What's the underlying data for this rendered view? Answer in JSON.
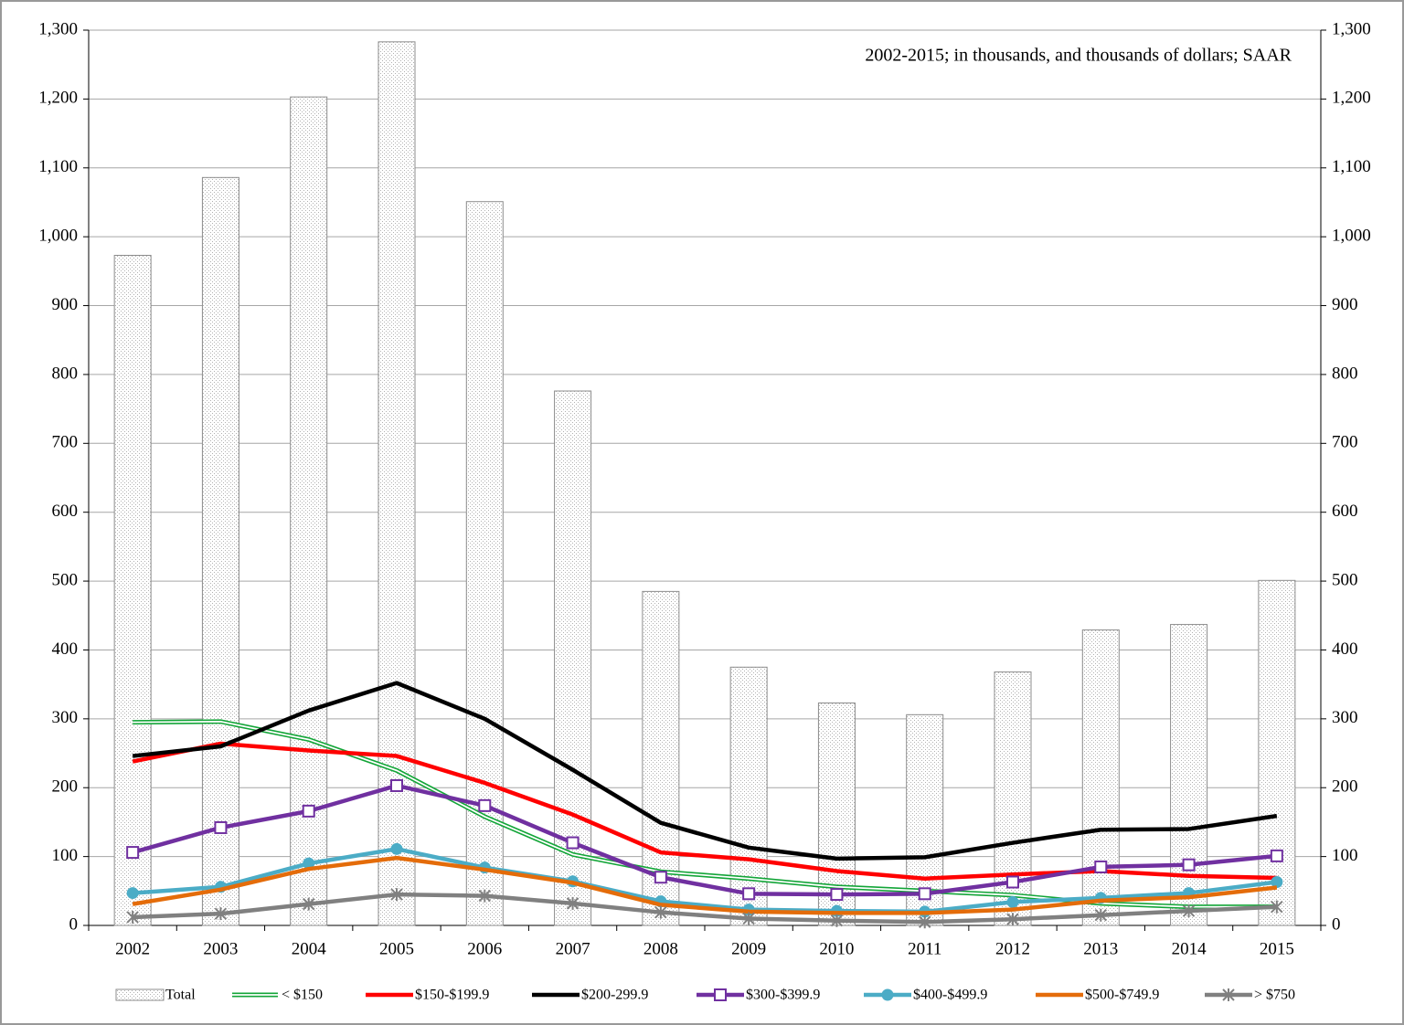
{
  "chart_data": {
    "type": "combo",
    "annotation": "2002-2015; in thousands, and thousands of dollars; SAAR",
    "categories": [
      "2002",
      "2003",
      "2004",
      "2005",
      "2006",
      "2007",
      "2008",
      "2009",
      "2010",
      "2011",
      "2012",
      "2013",
      "2014",
      "2015"
    ],
    "ylim": [
      0,
      1300
    ],
    "yticks": [
      0,
      100,
      200,
      300,
      400,
      500,
      600,
      700,
      800,
      900,
      {
        "value": 1000,
        "label": "1,000"
      },
      {
        "value": 1100,
        "label": "1,100"
      },
      {
        "value": 1200,
        "label": "1,200"
      },
      {
        "value": 1300,
        "label": "1,300"
      }
    ],
    "y2lim": [
      0,
      1300
    ],
    "y2ticks": [
      0,
      100,
      200,
      300,
      400,
      500,
      600,
      700,
      800,
      900,
      {
        "value": 1000,
        "label": "1,000"
      },
      {
        "value": 1100,
        "label": "1,100"
      },
      {
        "value": 1200,
        "label": "1,200"
      },
      {
        "value": 1300,
        "label": "1,300"
      }
    ],
    "grid": true,
    "legend": "bottom",
    "series": [
      {
        "name": "Total",
        "type": "bar",
        "color": "#b0b0b0",
        "values": [
          973,
          1086,
          1203,
          1283,
          1051,
          776,
          485,
          375,
          323,
          306,
          368,
          429,
          437,
          501
        ]
      },
      {
        "name": "< $150",
        "type": "line",
        "color": "#13a538",
        "marker": "double",
        "values": [
          295,
          296,
          270,
          225,
          158,
          103,
          78,
          68,
          56,
          50,
          44,
          32,
          27,
          27
        ]
      },
      {
        "name": "$150-$199.9",
        "type": "line",
        "color": "#ff0000",
        "marker": "none",
        "values": [
          238,
          264,
          254,
          246,
          207,
          161,
          106,
          96,
          79,
          68,
          74,
          79,
          72,
          69
        ]
      },
      {
        "name": "$200-299.9",
        "type": "line",
        "color": "#000000",
        "marker": "none",
        "values": [
          246,
          260,
          312,
          352,
          300,
          226,
          149,
          113,
          97,
          99,
          120,
          139,
          140,
          159
        ]
      },
      {
        "name": "$300-$399.9",
        "type": "line",
        "color": "#7030a0",
        "marker": "square",
        "values": [
          106,
          142,
          166,
          203,
          174,
          120,
          70,
          46,
          45,
          46,
          63,
          85,
          88,
          101
        ]
      },
      {
        "name": "$400-$499.9",
        "type": "line",
        "color": "#4bacc6",
        "marker": "circle",
        "values": [
          47,
          56,
          90,
          111,
          84,
          64,
          35,
          23,
          21,
          20,
          34,
          40,
          47,
          63
        ]
      },
      {
        "name": "$500-$749.9",
        "type": "line",
        "color": "#e46c0a",
        "marker": "none",
        "values": [
          31,
          52,
          82,
          98,
          81,
          62,
          30,
          20,
          18,
          18,
          23,
          36,
          41,
          55
        ]
      },
      {
        "name": "> $750",
        "type": "line",
        "color": "#808080",
        "marker": "star",
        "values": [
          12,
          17,
          31,
          45,
          43,
          32,
          19,
          10,
          7,
          5,
          9,
          15,
          21,
          27
        ]
      }
    ]
  }
}
